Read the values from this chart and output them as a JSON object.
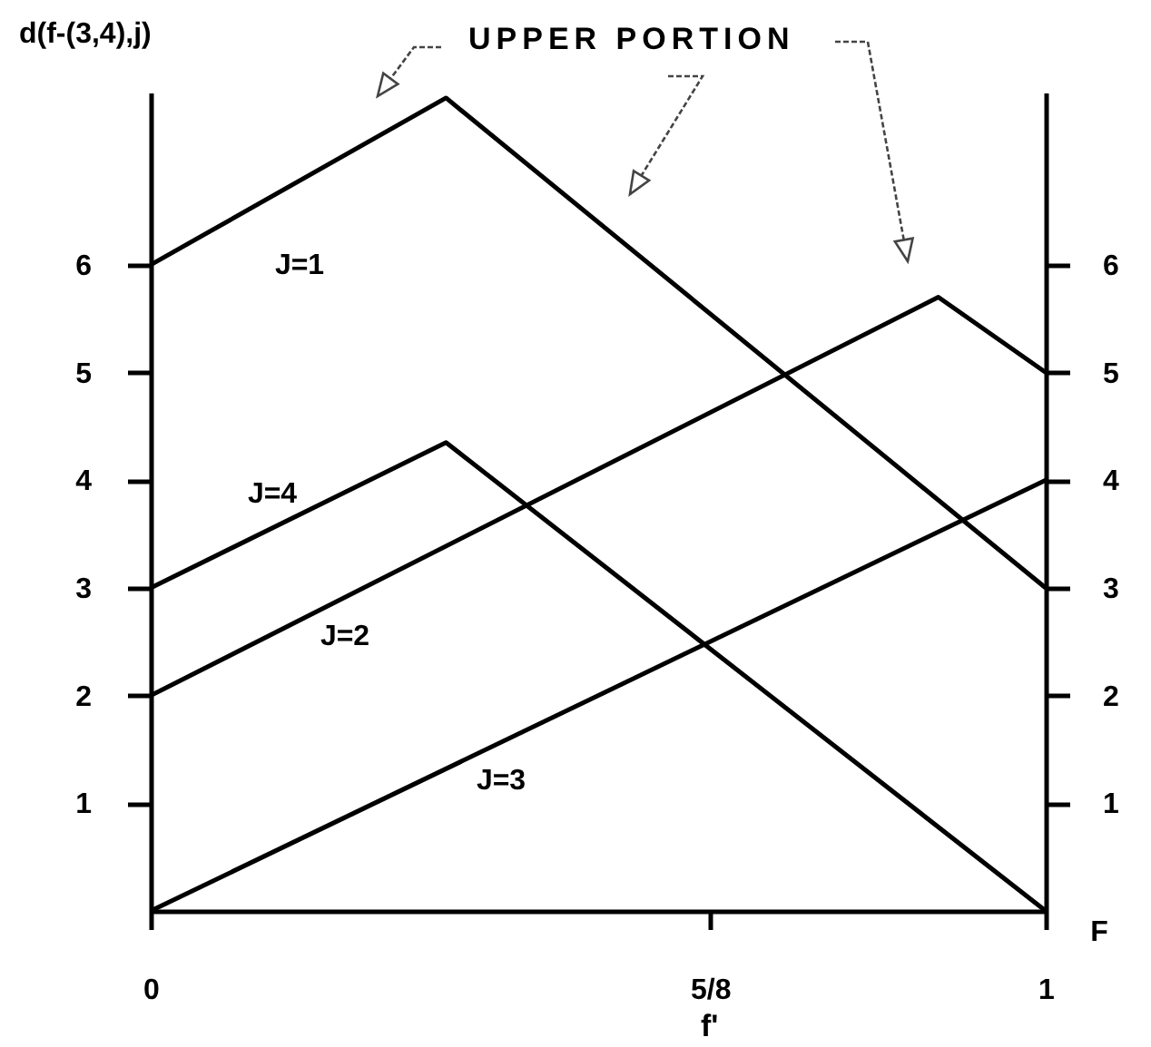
{
  "chart_data": {
    "type": "line",
    "ylabel": "d(f-(3,4),j)",
    "xlabel": "F",
    "annotations": [
      "UPPER PORTION",
      "f'"
    ],
    "series": [
      {
        "name": "J=1",
        "color": "#000000",
        "x": [
          0,
          0.33,
          1
        ],
        "values": [
          6,
          7.55,
          3
        ]
      },
      {
        "name": "J=2",
        "color": "#000000",
        "x": [
          0,
          0.88,
          1
        ],
        "values": [
          2,
          5.7,
          5
        ]
      },
      {
        "name": "J=3",
        "color": "#000000",
        "x": [
          0,
          1
        ],
        "values": [
          0,
          4
        ]
      },
      {
        "name": "J=4",
        "color": "#000000",
        "x": [
          0,
          0.33,
          1
        ],
        "values": [
          3,
          4.35,
          0
        ]
      }
    ],
    "xlim": [
      0,
      1
    ],
    "xticks": [
      0,
      {
        "value": 0.625,
        "label": "5/8"
      },
      1
    ],
    "ylim": [
      0,
      7.6
    ],
    "yticks": [
      1,
      2,
      3,
      4,
      5,
      6
    ],
    "y2lim": [
      0,
      7.6
    ],
    "y2ticks": [
      1,
      2,
      3,
      4,
      5,
      6
    ]
  }
}
